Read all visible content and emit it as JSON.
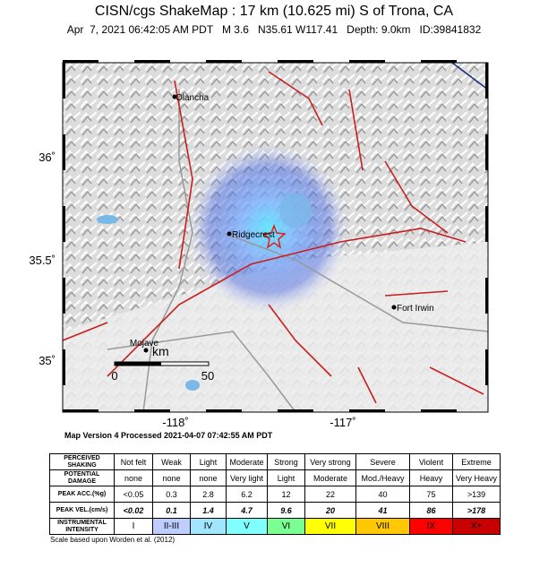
{
  "header": {
    "title": "CISN/cgs ShakeMap : 17 km (10.625 mi) S of Trona, CA",
    "subtitle": "Apr  7, 2021 06:42:05 AM PDT   M 3.6   N35.61 W117.41   Depth: 9.0km   ID:39841832"
  },
  "map": {
    "places": [
      {
        "label": "Olancha"
      },
      {
        "label": "Ridgecrest"
      },
      {
        "label": "Fort Irwin"
      },
      {
        "label": "Mojave"
      }
    ],
    "lat_labels": [
      "36˚",
      "35.5˚",
      "35˚"
    ],
    "lon_labels": [
      "-118˚",
      "-117˚"
    ],
    "scale": {
      "unit": "km",
      "ticks": [
        "0",
        "50"
      ]
    }
  },
  "version_note": "Map Version 4 Processed 2021-04-07 07:42:55 AM PDT",
  "legend_table": {
    "rows": [
      [
        "PERCEIVED SHAKING",
        "Not felt",
        "Weak",
        "Light",
        "Moderate",
        "Strong",
        "Very strong",
        "Severe",
        "Violent",
        "Extreme"
      ],
      [
        "POTENTIAL DAMAGE",
        "none",
        "none",
        "none",
        "Very light",
        "Light",
        "Moderate",
        "Mod./Heavy",
        "Heavy",
        "Very Heavy"
      ],
      [
        "PEAK ACC.(%g)",
        "<0.05",
        "0.3",
        "2.8",
        "6.2",
        "12",
        "22",
        "40",
        "75",
        ">139"
      ],
      [
        "PEAK VEL.(cm/s)",
        "<0.02",
        "0.1",
        "1.4",
        "4.7",
        "9.6",
        "20",
        "41",
        "86",
        ">178"
      ],
      [
        "INSTRUMENTAL INTENSITY",
        "I",
        "II-III",
        "IV",
        "V",
        "VI",
        "VII",
        "VIII",
        "IX",
        "X+"
      ]
    ]
  },
  "footnote": "Scale based upon Worden et al. (2012)"
}
